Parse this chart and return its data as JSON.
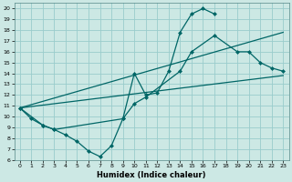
{
  "xlabel": "Humidex (Indice chaleur)",
  "bg_color": "#cce8e4",
  "grid_color": "#99cccc",
  "line_color": "#006666",
  "xlim": [
    -0.5,
    23.5
  ],
  "ylim": [
    6,
    20.5
  ],
  "xticks": [
    0,
    1,
    2,
    3,
    4,
    5,
    6,
    7,
    8,
    9,
    10,
    11,
    12,
    13,
    14,
    15,
    16,
    17,
    18,
    19,
    20,
    21,
    22,
    23
  ],
  "yticks": [
    6,
    7,
    8,
    9,
    10,
    11,
    12,
    13,
    14,
    15,
    16,
    17,
    18,
    19,
    20
  ],
  "series1_x": [
    0,
    1,
    2,
    3,
    4,
    5,
    6,
    7,
    8,
    9,
    10,
    11,
    12,
    13,
    14,
    15,
    16,
    17
  ],
  "series1_y": [
    10.8,
    9.8,
    9.2,
    8.8,
    8.3,
    7.7,
    6.8,
    6.3,
    7.3,
    9.8,
    14.0,
    12.0,
    12.2,
    14.2,
    17.8,
    19.5,
    20.0,
    19.5
  ],
  "series2_x": [
    0,
    2,
    3,
    9,
    10,
    11,
    14,
    15,
    17,
    19,
    20,
    21,
    22,
    23
  ],
  "series2_y": [
    10.8,
    9.2,
    8.8,
    9.8,
    11.2,
    11.8,
    14.2,
    16.0,
    17.5,
    16.0,
    16.0,
    15.0,
    14.5,
    14.2
  ],
  "line1_x": [
    0,
    23
  ],
  "line1_y": [
    10.8,
    13.8
  ],
  "line2_x": [
    0,
    23
  ],
  "line2_y": [
    10.8,
    17.8
  ]
}
